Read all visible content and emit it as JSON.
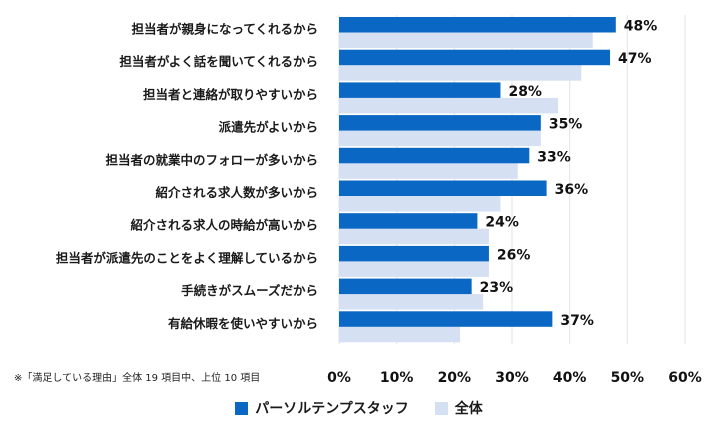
{
  "chart_data": {
    "type": "bar",
    "orientation": "horizontal",
    "categories": [
      "担当者が親身になってくれるから",
      "担当者がよく話を聞いてくれるから",
      "担当者と連絡が取りやすいから",
      "派遣先がよいから",
      "担当者の就業中のフォローが多いから",
      "紹介される求人数が多いから",
      "紹介される求人の時給が高いから",
      "担当者が派遣先のことをよく理解しているから",
      "手続きがスムーズだから",
      "有給休暇を使いやすいから"
    ],
    "series": [
      {
        "name": "パーソルテンプスタッフ",
        "color": "#0a67c4",
        "values": [
          48,
          47,
          28,
          35,
          33,
          36,
          24,
          26,
          23,
          37
        ]
      },
      {
        "name": "全体",
        "color": "#d5e0f3",
        "values": [
          44,
          42,
          38,
          35,
          31,
          28,
          26,
          26,
          25,
          21
        ]
      }
    ],
    "data_labels": [
      "48%",
      "47%",
      "28%",
      "35%",
      "33%",
      "36%",
      "24%",
      "26%",
      "23%",
      "37%"
    ],
    "xlim": [
      0,
      60
    ],
    "xticks": [
      "0%",
      "10%",
      "20%",
      "30%",
      "40%",
      "50%",
      "60%"
    ],
    "grid": true,
    "legend_placement": "bottom"
  },
  "footnote": "※「満足している理由」全体 19 項目中、上位 10 項目"
}
